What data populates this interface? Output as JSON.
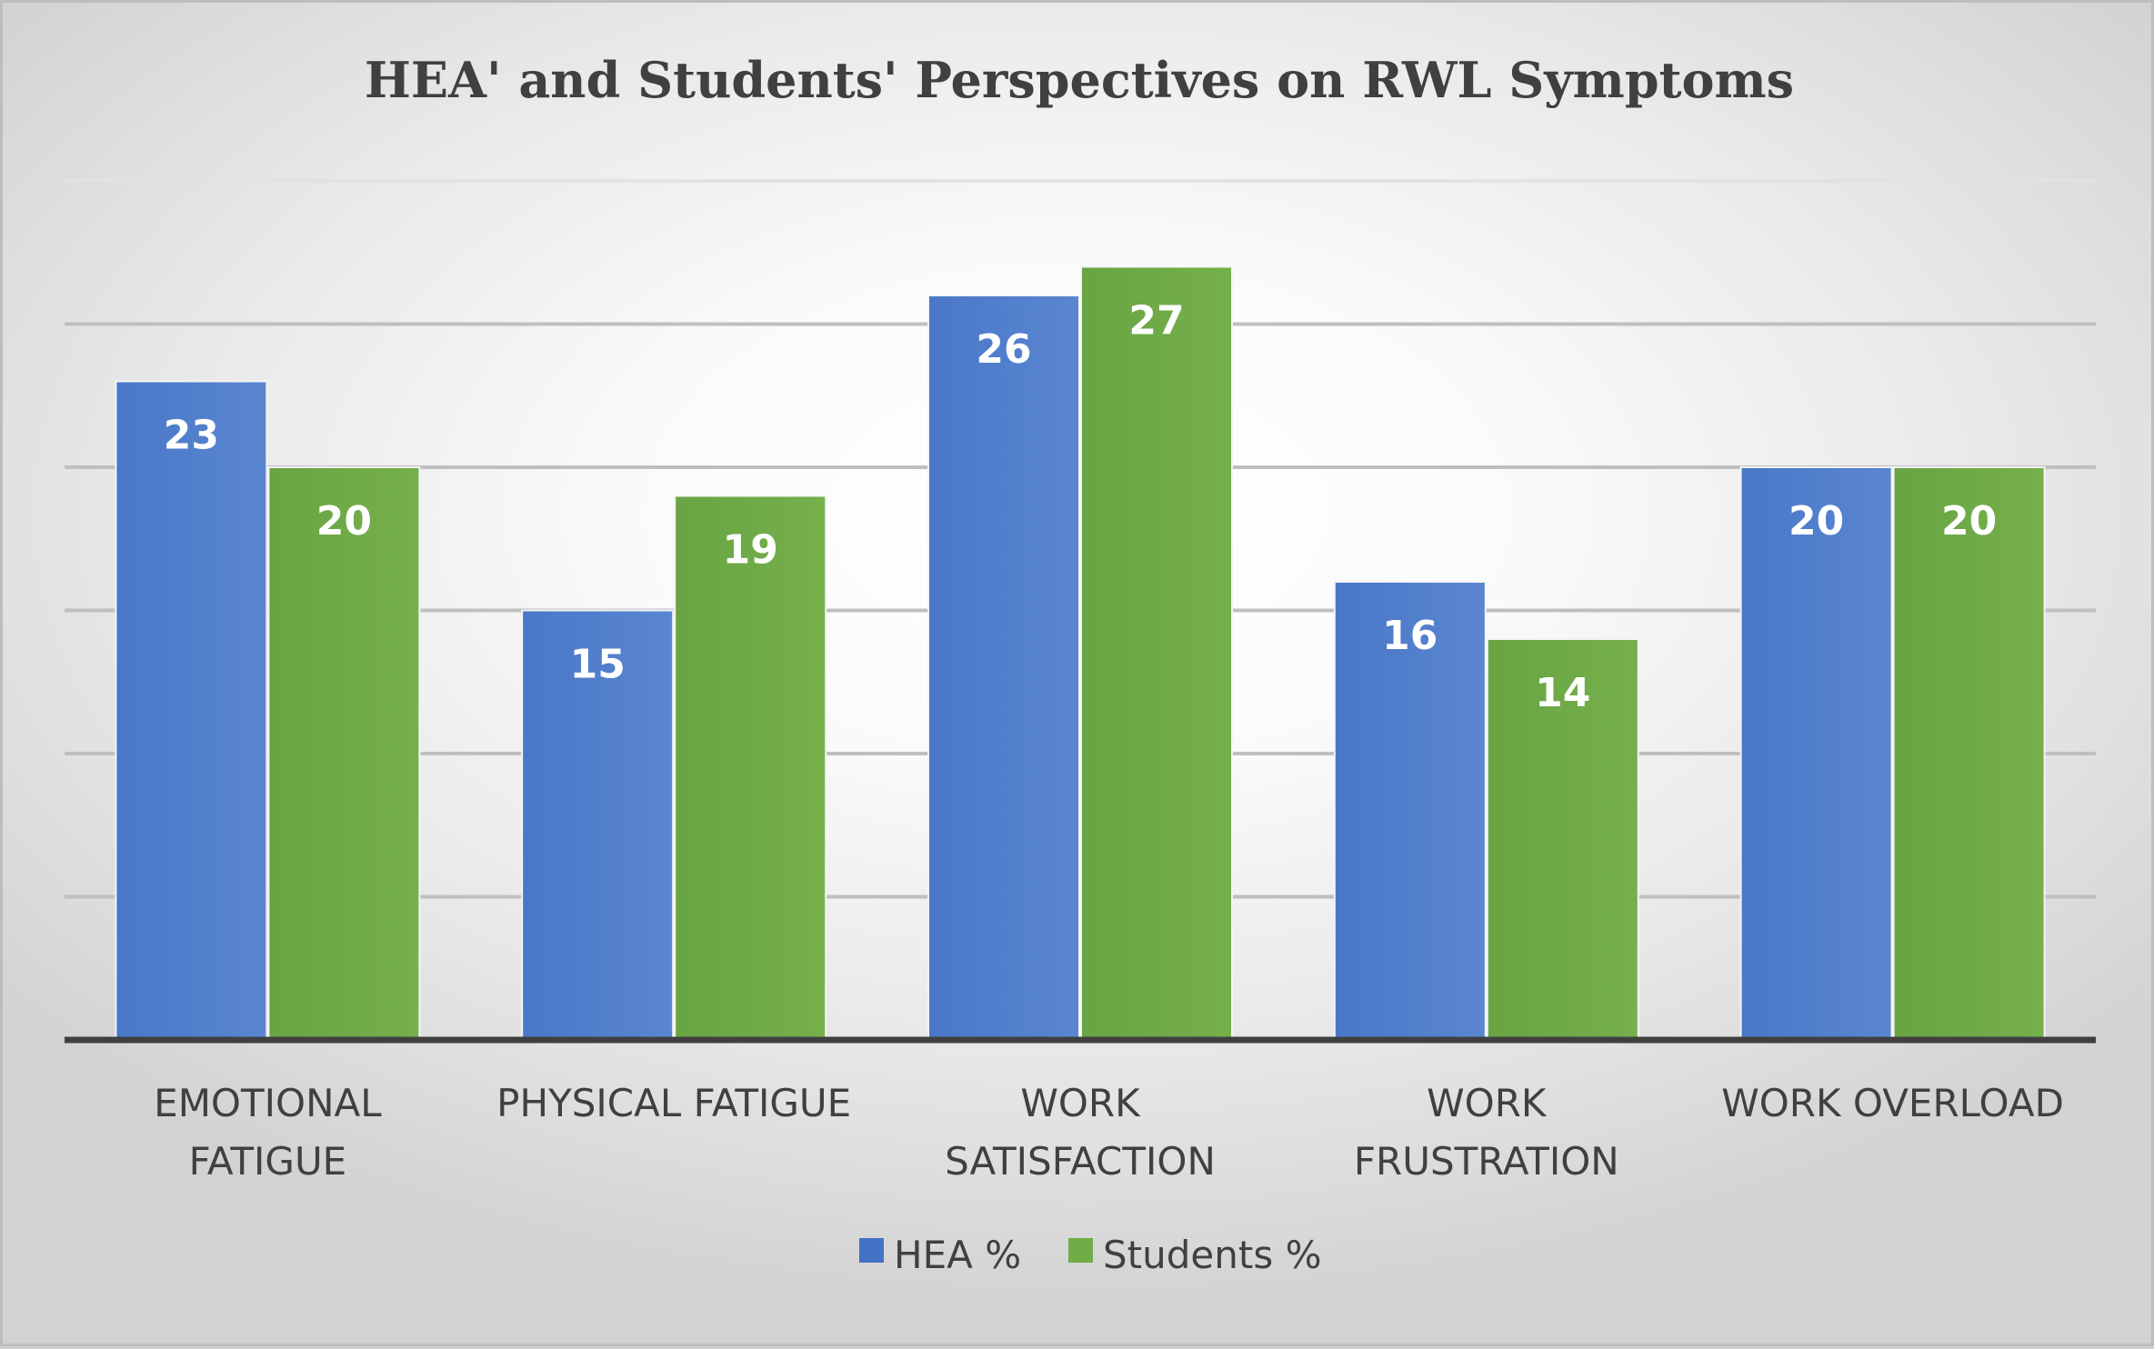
{
  "chart_data": {
    "type": "bar",
    "title": "HEA' and Students' Perspectives on RWL Symptoms",
    "xlabel": "",
    "ylabel": "",
    "categories": [
      [
        "EMOTIONAL",
        "FATIGUE"
      ],
      [
        "PHYSICAL FATIGUE"
      ],
      [
        "WORK",
        "SATISFACTION"
      ],
      [
        "WORK",
        "FRUSTRATION"
      ],
      [
        "WORK OVERLOAD"
      ]
    ],
    "series": [
      {
        "name": "HEA %",
        "color": "#4472c4",
        "values": [
          23,
          15,
          26,
          16,
          20
        ]
      },
      {
        "name": "Students %",
        "color": "#70ad47",
        "values": [
          20,
          19,
          27,
          14,
          20
        ]
      }
    ],
    "ylim": [
      0,
      30
    ],
    "y_gridline_step": 5,
    "y_axis_labels_shown": false,
    "grid": true,
    "legend": "bottom"
  }
}
